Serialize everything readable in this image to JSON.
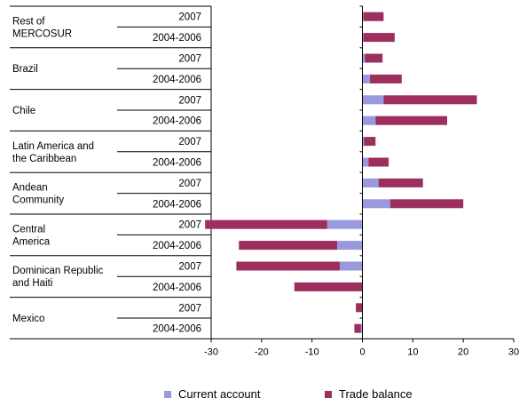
{
  "colors": {
    "current_account": "#9999dd",
    "trade_balance": "#9c2f5e",
    "axis": "#000000"
  },
  "chart_data": {
    "type": "bar",
    "orientation": "horizontal",
    "stacked": true,
    "title": "",
    "xlabel": "",
    "ylabel": "",
    "xlim": [
      -30,
      30
    ],
    "xticks": [
      "-30",
      "-20",
      "-10",
      "0",
      "10",
      "20",
      "30"
    ],
    "legend_position": "bottom",
    "groups": [
      {
        "name": "Rest of MERCOSUR",
        "lines": [
          "Rest of",
          "MERCOSUR"
        ]
      },
      {
        "name": "Brazil",
        "lines": [
          "Brazil"
        ]
      },
      {
        "name": "Chile",
        "lines": [
          "Chile"
        ]
      },
      {
        "name": "Latin America and the Caribbean",
        "lines": [
          "Latin America and",
          "the Caribbean"
        ]
      },
      {
        "name": "Andean Community",
        "lines": [
          "Andean",
          "Community"
        ]
      },
      {
        "name": "Central America",
        "lines": [
          "Central",
          "America"
        ]
      },
      {
        "name": "Dominican Republic and Haiti",
        "lines": [
          "Dominican Republic",
          "and Haiti"
        ]
      },
      {
        "name": "Mexico",
        "lines": [
          "Mexico"
        ]
      }
    ],
    "periods": [
      "2007",
      "2004-2006"
    ],
    "series": [
      {
        "name": "Current account",
        "values": [
          0.2,
          0.2,
          0.5,
          1.5,
          4.2,
          2.6,
          0.3,
          1.2,
          3.2,
          5.5,
          -7,
          -5,
          -4.5,
          0,
          0,
          -0.3
        ]
      },
      {
        "name": "Trade balance",
        "values": [
          4,
          6.2,
          3.5,
          6.3,
          18.5,
          14.2,
          2.3,
          4,
          8.8,
          14.5,
          -24.2,
          -19.5,
          -20.5,
          -13.5,
          -1.3,
          -1.3
        ]
      }
    ]
  }
}
